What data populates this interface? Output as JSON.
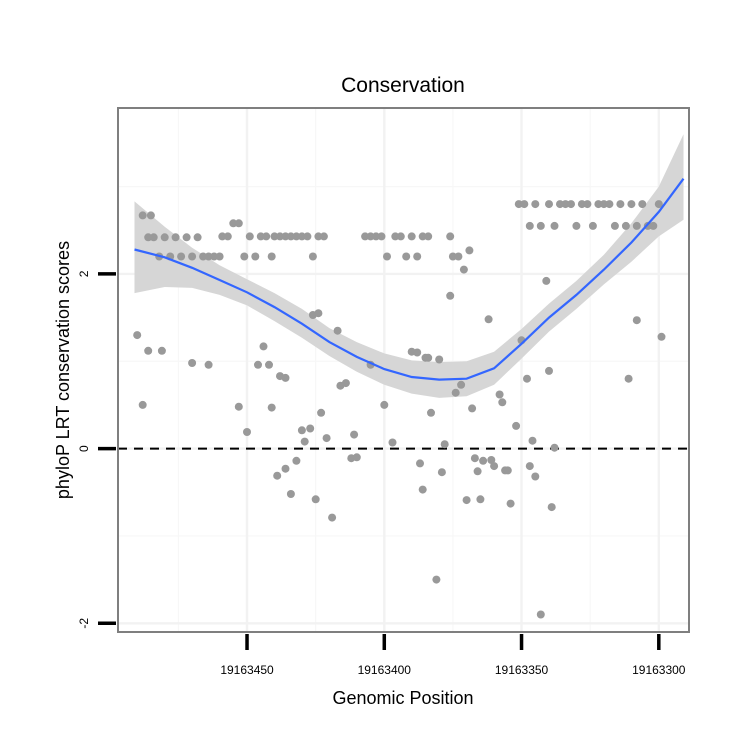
{
  "chart_data": {
    "type": "scatter",
    "title": "Conservation",
    "xlabel": "Genomic Position",
    "ylabel": "phyloP LRT conservation scores",
    "x_reversed": true,
    "xlim": [
      19163497,
      19163289
    ],
    "ylim": [
      -2.1,
      3.9
    ],
    "x_ticks": [
      19163450,
      19163400,
      19163350,
      19163300
    ],
    "x_tick_labels": [
      "19163450",
      "19163400",
      "19163350",
      "19163300"
    ],
    "y_ticks": [
      -2,
      0,
      2
    ],
    "y_tick_labels": [
      "-2",
      "0",
      "2"
    ],
    "hline": {
      "y": 0,
      "style": "dashed",
      "color": "#000000"
    },
    "colors": {
      "points": "#999999",
      "smooth": "#3366ff",
      "band": "#d6d6d6",
      "frame": "#7f7f7f"
    },
    "series": [
      {
        "name": "observed",
        "kind": "points",
        "points": [
          [
            19163488,
            2.67
          ],
          [
            19163485,
            2.67
          ],
          [
            19163486,
            2.42
          ],
          [
            19163484,
            2.42
          ],
          [
            19163482,
            2.2
          ],
          [
            19163480,
            2.42
          ],
          [
            19163478,
            2.2
          ],
          [
            19163476,
            2.42
          ],
          [
            19163474,
            2.2
          ],
          [
            19163472,
            2.42
          ],
          [
            19163470,
            2.2
          ],
          [
            19163468,
            2.42
          ],
          [
            19163466,
            2.2
          ],
          [
            19163464,
            2.2
          ],
          [
            19163462,
            2.2
          ],
          [
            19163460,
            2.2
          ],
          [
            19163459,
            2.43
          ],
          [
            19163457,
            2.43
          ],
          [
            19163455,
            2.58
          ],
          [
            19163453,
            2.58
          ],
          [
            19163451,
            2.2
          ],
          [
            19163449,
            2.43
          ],
          [
            19163447,
            2.2
          ],
          [
            19163445,
            2.43
          ],
          [
            19163443,
            2.43
          ],
          [
            19163441,
            2.2
          ],
          [
            19163440,
            2.43
          ],
          [
            19163438,
            2.43
          ],
          [
            19163436,
            2.43
          ],
          [
            19163434,
            2.43
          ],
          [
            19163432,
            2.43
          ],
          [
            19163430,
            2.43
          ],
          [
            19163428,
            2.43
          ],
          [
            19163426,
            2.2
          ],
          [
            19163424,
            2.43
          ],
          [
            19163422,
            2.43
          ],
          [
            19163407,
            2.43
          ],
          [
            19163405,
            2.43
          ],
          [
            19163403,
            2.43
          ],
          [
            19163401,
            2.43
          ],
          [
            19163399,
            2.2
          ],
          [
            19163396,
            2.43
          ],
          [
            19163394,
            2.43
          ],
          [
            19163392,
            2.2
          ],
          [
            19163390,
            2.43
          ],
          [
            19163388,
            2.2
          ],
          [
            19163386,
            2.43
          ],
          [
            19163384,
            2.43
          ],
          [
            19163375,
            2.2
          ],
          [
            19163376,
            2.43
          ],
          [
            19163373,
            2.2
          ],
          [
            19163371,
            2.05
          ],
          [
            19163369,
            2.27
          ],
          [
            19163351,
            2.8
          ],
          [
            19163349,
            2.8
          ],
          [
            19163347,
            2.55
          ],
          [
            19163345,
            2.8
          ],
          [
            19163343,
            2.55
          ],
          [
            19163340,
            2.8
          ],
          [
            19163338,
            2.55
          ],
          [
            19163336,
            2.8
          ],
          [
            19163334,
            2.8
          ],
          [
            19163332,
            2.8
          ],
          [
            19163330,
            2.55
          ],
          [
            19163328,
            2.8
          ],
          [
            19163326,
            2.8
          ],
          [
            19163324,
            2.55
          ],
          [
            19163322,
            2.8
          ],
          [
            19163320,
            2.8
          ],
          [
            19163318,
            2.8
          ],
          [
            19163316,
            2.55
          ],
          [
            19163314,
            2.8
          ],
          [
            19163312,
            2.55
          ],
          [
            19163310,
            2.8
          ],
          [
            19163308,
            2.55
          ],
          [
            19163306,
            2.8
          ],
          [
            19163304,
            2.55
          ],
          [
            19163302,
            2.55
          ],
          [
            19163300,
            2.8
          ],
          [
            19163490,
            1.3
          ],
          [
            19163488,
            0.5
          ],
          [
            19163486,
            1.12
          ],
          [
            19163481,
            1.12
          ],
          [
            19163470,
            0.98
          ],
          [
            19163464,
            0.96
          ],
          [
            19163453,
            0.48
          ],
          [
            19163450,
            0.19
          ],
          [
            19163446,
            0.96
          ],
          [
            19163444,
            1.17
          ],
          [
            19163442,
            0.96
          ],
          [
            19163441,
            0.47
          ],
          [
            19163438,
            0.83
          ],
          [
            19163436,
            0.81
          ],
          [
            19163439,
            -0.31
          ],
          [
            19163436,
            -0.23
          ],
          [
            19163434,
            -0.52
          ],
          [
            19163432,
            -0.14
          ],
          [
            19163430,
            0.21
          ],
          [
            19163429,
            0.08
          ],
          [
            19163427,
            0.23
          ],
          [
            19163425,
            -0.58
          ],
          [
            19163426,
            1.53
          ],
          [
            19163424,
            1.55
          ],
          [
            19163423,
            0.41
          ],
          [
            19163421,
            0.12
          ],
          [
            19163419,
            -0.79
          ],
          [
            19163417,
            1.35
          ],
          [
            19163416,
            0.72
          ],
          [
            19163414,
            0.75
          ],
          [
            19163412,
            -0.11
          ],
          [
            19163411,
            0.16
          ],
          [
            19163410,
            -0.1
          ],
          [
            19163405,
            0.96
          ],
          [
            19163400,
            0.5
          ],
          [
            19163397,
            0.07
          ],
          [
            19163390,
            1.11
          ],
          [
            19163388,
            1.1
          ],
          [
            19163387,
            -0.17
          ],
          [
            19163385,
            1.04
          ],
          [
            19163384,
            1.04
          ],
          [
            19163386,
            -0.47
          ],
          [
            19163383,
            0.41
          ],
          [
            19163381,
            -1.5
          ],
          [
            19163380,
            1.02
          ],
          [
            19163379,
            -0.27
          ],
          [
            19163378,
            0.05
          ],
          [
            19163376,
            1.75
          ],
          [
            19163374,
            0.64
          ],
          [
            19163372,
            0.73
          ],
          [
            19163370,
            -0.59
          ],
          [
            19163368,
            0.46
          ],
          [
            19163367,
            -0.11
          ],
          [
            19163366,
            -0.26
          ],
          [
            19163365,
            -0.58
          ],
          [
            19163364,
            -0.14
          ],
          [
            19163362,
            1.48
          ],
          [
            19163361,
            -0.13
          ],
          [
            19163360,
            -0.2
          ],
          [
            19163358,
            0.62
          ],
          [
            19163357,
            0.53
          ],
          [
            19163356,
            -0.25
          ],
          [
            19163354,
            -0.63
          ],
          [
            19163355,
            -0.25
          ],
          [
            19163352,
            0.26
          ],
          [
            19163350,
            1.24
          ],
          [
            19163348,
            0.8
          ],
          [
            19163347,
            -0.2
          ],
          [
            19163346,
            0.09
          ],
          [
            19163345,
            -0.32
          ],
          [
            19163343,
            -1.9
          ],
          [
            19163341,
            1.92
          ],
          [
            19163340,
            0.89
          ],
          [
            19163339,
            -0.67
          ],
          [
            19163338,
            0.01
          ],
          [
            19163311,
            0.8
          ],
          [
            19163308,
            1.47
          ],
          [
            19163299,
            1.28
          ]
        ]
      },
      {
        "name": "loess fit",
        "kind": "smooth",
        "x": [
          19163491,
          19163480,
          19163470,
          19163460,
          19163450,
          19163440,
          19163430,
          19163420,
          19163410,
          19163400,
          19163390,
          19163380,
          19163370,
          19163360,
          19163350,
          19163340,
          19163330,
          19163320,
          19163310,
          19163300,
          19163291
        ],
        "y": [
          2.28,
          2.19,
          2.07,
          1.93,
          1.79,
          1.62,
          1.43,
          1.22,
          1.05,
          0.91,
          0.82,
          0.79,
          0.8,
          0.92,
          1.2,
          1.5,
          1.76,
          2.05,
          2.36,
          2.71,
          3.09
        ],
        "lower": [
          1.78,
          1.85,
          1.84,
          1.76,
          1.64,
          1.46,
          1.27,
          1.06,
          0.88,
          0.73,
          0.63,
          0.58,
          0.6,
          0.73,
          1.03,
          1.34,
          1.6,
          1.88,
          2.14,
          2.43,
          2.62
        ],
        "upper": [
          2.83,
          2.54,
          2.3,
          2.1,
          1.94,
          1.78,
          1.6,
          1.38,
          1.22,
          1.09,
          1.01,
          0.99,
          1.0,
          1.11,
          1.37,
          1.66,
          1.92,
          2.22,
          2.58,
          3.0,
          3.6
        ]
      }
    ]
  }
}
